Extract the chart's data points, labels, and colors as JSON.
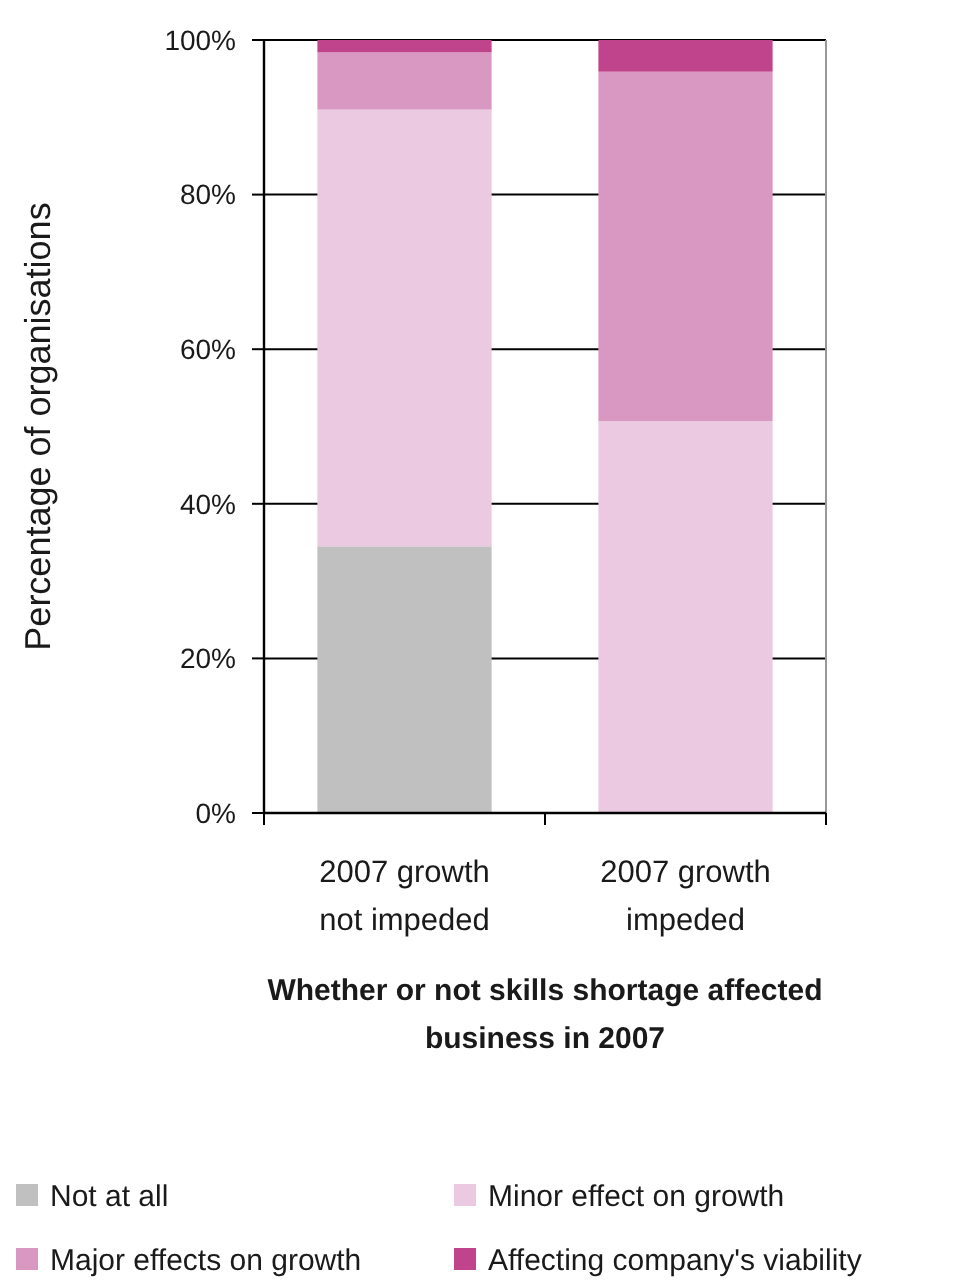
{
  "chart_data": {
    "type": "bar",
    "stacked": true,
    "ylabel": "Percentage of organisations",
    "xlabel": "Whether or not skills shortage affected business in 2007",
    "categories": [
      "2007 growth not impeded",
      "2007 growth impeded"
    ],
    "series": [
      {
        "name": "Not at all",
        "color": "#c0c0c0",
        "values": [
          34.5,
          0
        ]
      },
      {
        "name": "Minor effect on growth",
        "color": "#ebcae1",
        "values": [
          56.5,
          50.7
        ]
      },
      {
        "name": "Major effects on growth",
        "color": "#d998c2",
        "values": [
          7.4,
          45.2
        ]
      },
      {
        "name": "Affecting company's viability",
        "color": "#c0448c",
        "values": [
          1.6,
          4.1
        ]
      }
    ],
    "ylim": [
      0,
      100
    ],
    "yticks": [
      {
        "value": 0,
        "label": "0%"
      },
      {
        "value": 20,
        "label": "20%"
      },
      {
        "value": 40,
        "label": "40%"
      },
      {
        "value": 60,
        "label": "60%"
      },
      {
        "value": 80,
        "label": "80%"
      },
      {
        "value": 100,
        "label": "100%"
      }
    ],
    "grid": "y",
    "legend": "bottom"
  }
}
